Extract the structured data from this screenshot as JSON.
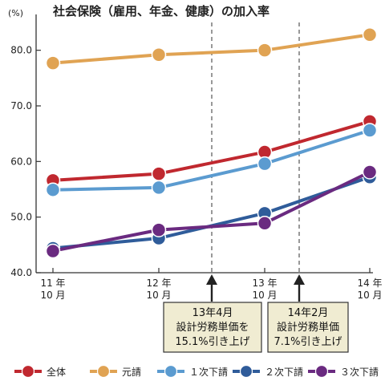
{
  "chart_data": {
    "type": "line",
    "title": "社会保険（雇用、年金、健康）の加入率",
    "y_unit": "(%)",
    "xlabel": "",
    "ylabel": "",
    "ylim": [
      40,
      85
    ],
    "y_ticks": [
      "40.0",
      "50.0",
      "60.0",
      "70.0",
      "80.0"
    ],
    "grid": false,
    "legend_position": "bottom",
    "categories": [
      {
        "year": "11 年",
        "month": "10 月"
      },
      {
        "year": "12 年",
        "month": "10 月"
      },
      {
        "year": "13 年",
        "month": "10 月"
      },
      {
        "year": "14 年",
        "month": "10 月"
      }
    ],
    "series": [
      {
        "name": "全体",
        "color": "#c0282f",
        "values": [
          56.6,
          57.8,
          61.7,
          67.2
        ]
      },
      {
        "name": "元請",
        "color": "#e0a353",
        "values": [
          77.7,
          79.2,
          80.0,
          82.8
        ]
      },
      {
        "name": "１次下請",
        "color": "#5b9bd0",
        "values": [
          54.9,
          55.3,
          59.6,
          65.6
        ]
      },
      {
        "name": "２次下請",
        "color": "#2f5c9a",
        "values": [
          44.4,
          46.2,
          50.7,
          57.2
        ]
      },
      {
        "name": "３次下請",
        "color": "#6a2a80",
        "values": [
          43.9,
          47.7,
          48.9,
          58.1
        ]
      }
    ],
    "annotations": [
      {
        "lines": [
          "13年4月",
          "設計労務単価を",
          "15.1%引き上げ"
        ],
        "color": "#f0ecd2"
      },
      {
        "lines": [
          "14年2月",
          "設計労務単価",
          "7.1%引き上げ"
        ],
        "color": "#f0ecd2"
      }
    ]
  }
}
